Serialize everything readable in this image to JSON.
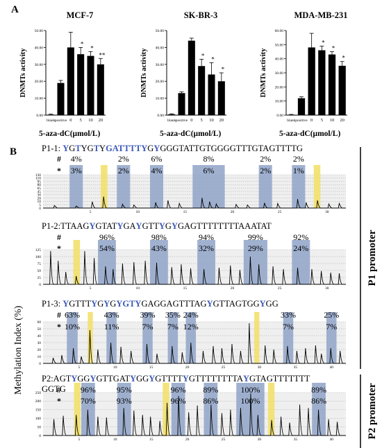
{
  "panels": {
    "a": "A",
    "b": "B"
  },
  "chart_data": [
    {
      "type": "bar",
      "title": "MCF-7",
      "ylabel": "DNMTs activity",
      "xlabel": "5-aza-dC(μmol/L)",
      "ylim": [
        0,
        50
      ],
      "yticks": [
        "0.00",
        "10.00",
        "20.00",
        "30.00",
        "40.00",
        "50.00"
      ],
      "categories": [
        "blank",
        "positive",
        "0",
        "5",
        "10",
        "20"
      ],
      "values": [
        0.3,
        19.0,
        40.0,
        36.0,
        35.0,
        30.0
      ],
      "errors": [
        0.3,
        1.5,
        9.0,
        4.0,
        2.5,
        3.5
      ],
      "significance": [
        "",
        "",
        "",
        "*",
        "*",
        "**"
      ],
      "colors": [
        "#000000",
        "#000000",
        "#000000",
        "#000000",
        "#000000",
        "#000000"
      ],
      "grid": false
    },
    {
      "type": "bar",
      "title": "SK-BR-3",
      "ylabel": "DNMTs activity",
      "xlabel": "5-aza-dC(μmol/L)",
      "ylim": [
        0,
        50
      ],
      "yticks": [
        "0.00",
        "10.00",
        "20.00",
        "30.00",
        "40.00",
        "50.00"
      ],
      "categories": [
        "blank",
        "positive",
        "0",
        "5",
        "10",
        "20"
      ],
      "values": [
        0.5,
        13.0,
        44.0,
        29.0,
        24.0,
        20.0
      ],
      "errors": [
        0.3,
        0.8,
        1.5,
        4.0,
        7.0,
        5.0
      ],
      "significance": [
        "",
        "",
        "",
        "*",
        "*",
        "*"
      ],
      "colors": [
        "#000000",
        "#000000",
        "#000000",
        "#000000",
        "#000000",
        "#000000"
      ],
      "grid": false
    },
    {
      "type": "bar",
      "title": "MDA-MB-231",
      "ylabel": "DNMTs activity",
      "xlabel": "5-aza-dC(μmol/L)",
      "ylim": [
        0,
        60
      ],
      "yticks": [
        "0.00",
        "10.00",
        "20.00",
        "30.00",
        "40.00",
        "50.00",
        "60.00"
      ],
      "categories": [
        "blank",
        "positive",
        "0",
        "5",
        "10",
        "20"
      ],
      "values": [
        0.3,
        12.0,
        48.0,
        46.0,
        43.0,
        35.0
      ],
      "errors": [
        0.2,
        1.0,
        10.0,
        3.0,
        2.0,
        3.0
      ],
      "significance": [
        "",
        "",
        "",
        "*",
        "*",
        "*"
      ],
      "colors": [
        "#000000",
        "#000000",
        "#000000",
        "#000000",
        "#000000",
        "#000000"
      ],
      "grid": false
    }
  ],
  "methylation": {
    "ylabel": "Methylation Index (%)",
    "hash": "#",
    "star": "*",
    "p1_label": "P1 promoter",
    "p2_label": "P2 promoter",
    "colors": {
      "cpg": "#8fa3c8",
      "control": "#f2e06b",
      "trace": "#000000"
    },
    "rows": [
      {
        "seq": [
          "P1-1: ",
          "Y",
          "G",
          "T",
          "Y",
          "G",
          "T",
          "Y",
          "GATTTTY",
          "G",
          "Y",
          "G",
          "GGTATTGTGGGGTTTGTAGTTTTG"
        ],
        "seq_blue": [
          1,
          3,
          6,
          8,
          10
        ],
        "ymax": 130,
        "yticks": [
          "0",
          "5",
          "10",
          "20",
          "30",
          "45",
          "65",
          "80",
          "95",
          "110",
          "130"
        ],
        "xticks": [
          "5",
          "10",
          "15",
          "20",
          "25",
          "30"
        ],
        "xmax": 32,
        "hash_values": [
          "4%",
          "2%",
          "6%",
          "8%",
          "2%",
          "2%"
        ],
        "star_values": [
          "3%",
          "2%",
          "4%",
          "6%",
          "2%",
          "1%"
        ],
        "cpg_regions": [
          [
            2.8,
            4.2
          ],
          [
            7.8,
            9.2
          ],
          [
            11.3,
            12.7
          ],
          [
            15.8,
            19.2
          ],
          [
            22.8,
            24.2
          ],
          [
            26.3,
            27.7
          ]
        ],
        "control_regions": [
          [
            6.1,
            6.8
          ],
          [
            28.6,
            29.3
          ]
        ],
        "peaks": [
          [
            1.2,
            10
          ],
          [
            3.5,
            8
          ],
          [
            5.2,
            25
          ],
          [
            6.4,
            45
          ],
          [
            8.4,
            15
          ],
          [
            9.6,
            12
          ],
          [
            11.9,
            22
          ],
          [
            13.2,
            30
          ],
          [
            14.4,
            18
          ],
          [
            16.8,
            40
          ],
          [
            17.6,
            25
          ],
          [
            18.3,
            16
          ],
          [
            20.4,
            14
          ],
          [
            21.6,
            12
          ],
          [
            23.4,
            20
          ],
          [
            24.8,
            18
          ],
          [
            26.9,
            35
          ],
          [
            27.8,
            22
          ],
          [
            29.0,
            30
          ],
          [
            30.2,
            16
          ],
          [
            31.3,
            18
          ]
        ]
      },
      {
        "seq": [
          "P1-2:TTAAG",
          "Y",
          "GTAT",
          "Y",
          "GA",
          "Y",
          "GTT",
          "Y",
          "G",
          "Y",
          "GAGTTTTTTTTAAATAT"
        ],
        "seq_blue": [
          1,
          3,
          5,
          7,
          9
        ],
        "ymax": 125,
        "yticks": [
          "0",
          "25",
          "50",
          "75",
          "100",
          "125"
        ],
        "xticks": [
          "5",
          "10",
          "15",
          "20",
          "25",
          "30"
        ],
        "xmax": 32,
        "hash_values": [
          "96%",
          "98%",
          "94%",
          "99%",
          "92%"
        ],
        "star_values": [
          "54%",
          "43%",
          "32%",
          "29%",
          "24%"
        ],
        "cpg_regions": [
          [
            5.8,
            7.7
          ],
          [
            11.3,
            13.2
          ],
          [
            16.3,
            18.2
          ],
          [
            21.2,
            23.7
          ],
          [
            26.3,
            28.2
          ]
        ],
        "control_regions": [
          [
            3.2,
            3.9
          ]
        ],
        "peaks": [
          [
            0.8,
            120
          ],
          [
            1.6,
            85
          ],
          [
            2.4,
            45
          ],
          [
            3.5,
            30
          ],
          [
            4.4,
            120
          ],
          [
            5.4,
            95
          ],
          [
            6.6,
            65
          ],
          [
            7.4,
            55
          ],
          [
            8.4,
            75
          ],
          [
            9.6,
            80
          ],
          [
            10.8,
            85
          ],
          [
            12.0,
            78
          ],
          [
            13.6,
            62
          ],
          [
            14.6,
            72
          ],
          [
            15.6,
            58
          ],
          [
            17.0,
            55
          ],
          [
            18.6,
            60
          ],
          [
            19.8,
            68
          ],
          [
            20.8,
            52
          ],
          [
            21.9,
            100
          ],
          [
            22.8,
            72
          ],
          [
            24.3,
            65
          ],
          [
            25.4,
            55
          ],
          [
            26.9,
            60
          ],
          [
            28.4,
            55
          ],
          [
            29.4,
            48
          ],
          [
            30.4,
            42
          ],
          [
            31.3,
            40
          ]
        ]
      },
      {
        "seq": [
          "P1-3: ",
          "Y",
          "GTTT",
          "Y",
          "G",
          "Y",
          "G",
          "Y",
          "GTY",
          "GAGGAGTTTAG",
          "Y",
          "GTTAGTGG",
          "Y",
          "GG"
        ],
        "seq_blue": [
          1,
          3,
          5,
          7,
          8,
          10,
          12
        ],
        "ymax": 60,
        "yticks": [
          "0",
          "10",
          "20",
          "30",
          "40",
          "50",
          "60"
        ],
        "xticks": [
          "5",
          "10",
          "15",
          "20",
          "25",
          "30",
          "35",
          "40"
        ],
        "xmax": 42,
        "hash_values": [
          "63%",
          "43%",
          "39%",
          "35%",
          "24%",
          "33%",
          "25%"
        ],
        "star_values": [
          "10%",
          "11%",
          "7%",
          "7%",
          "12%",
          "7%",
          "7%"
        ],
        "cpg_regions": [
          [
            3.3,
            4.8
          ],
          [
            8.8,
            10.2
          ],
          [
            13.8,
            15.2
          ],
          [
            17.3,
            18.7
          ],
          [
            19.8,
            21.2
          ],
          [
            33.3,
            34.7
          ],
          [
            39.3,
            40.7
          ]
        ],
        "control_regions": [
          [
            6.2,
            6.9
          ],
          [
            29.3,
            30.0
          ]
        ],
        "peaks": [
          [
            1.4,
            8
          ],
          [
            2.6,
            12
          ],
          [
            4.2,
            22
          ],
          [
            5.3,
            10
          ],
          [
            6.5,
            48
          ],
          [
            7.6,
            20
          ],
          [
            9.4,
            30
          ],
          [
            10.8,
            24
          ],
          [
            12.2,
            18
          ],
          [
            14.4,
            28
          ],
          [
            15.8,
            14
          ],
          [
            17.9,
            25
          ],
          [
            19.3,
            16
          ],
          [
            20.5,
            30
          ],
          [
            22.2,
            18
          ],
          [
            23.6,
            25
          ],
          [
            24.8,
            22
          ],
          [
            26.2,
            28
          ],
          [
            27.4,
            18
          ],
          [
            28.6,
            58
          ],
          [
            30.8,
            26
          ],
          [
            32.0,
            20
          ],
          [
            33.9,
            25
          ],
          [
            35.2,
            18
          ],
          [
            36.4,
            22
          ],
          [
            37.8,
            26
          ],
          [
            38.6,
            14
          ],
          [
            39.9,
            22
          ],
          [
            41.2,
            18
          ]
        ]
      },
      {
        "seq": [
          "P2:AGT",
          "Y",
          "GG",
          "Y",
          "GTTGAT",
          "Y",
          "GG",
          "Y",
          "GTTTT",
          "Y",
          "GTTTTTTTTA",
          "Y",
          "GTAGTTTTTTT"
        ],
        "seq_blue": [
          1,
          3,
          5,
          7,
          9,
          11
        ],
        "seq_line2": "GGTG",
        "ymax": 250,
        "yticks": [
          "0",
          "50",
          "100",
          "150",
          "200",
          "250"
        ],
        "xticks": [
          "5",
          "10",
          "15",
          "20",
          "25",
          "30",
          "35",
          "40"
        ],
        "xmax": 42,
        "hash_values": [
          "96%",
          "95%",
          "96%",
          "89%",
          "100%",
          "89%"
        ],
        "star_values": [
          "70%",
          "93%",
          "96%",
          "86%",
          "100%",
          "86%"
        ],
        "cpg_regions": [
          [
            5.3,
            7.2
          ],
          [
            10.3,
            12.2
          ],
          [
            17.8,
            19.7
          ],
          [
            22.3,
            24.2
          ],
          [
            26.8,
            30.7
          ],
          [
            37.3,
            39.2
          ]
        ],
        "control_regions": [
          [
            4.3,
            5.2
          ],
          [
            16.6,
            17.5
          ],
          [
            31.2,
            32.1
          ]
        ],
        "peaks": [
          [
            1.5,
            95
          ],
          [
            2.8,
            115
          ],
          [
            4.6,
            120
          ],
          [
            6.2,
            150
          ],
          [
            7.6,
            110
          ],
          [
            8.8,
            105
          ],
          [
            11.2,
            160
          ],
          [
            12.6,
            145
          ],
          [
            13.8,
            120
          ],
          [
            14.9,
            110
          ],
          [
            16.2,
            85
          ],
          [
            17.2,
            190
          ],
          [
            18.8,
            230
          ],
          [
            20.2,
            135
          ],
          [
            21.4,
            175
          ],
          [
            23.3,
            180
          ],
          [
            24.8,
            130
          ],
          [
            26.0,
            150
          ],
          [
            27.4,
            160
          ],
          [
            28.8,
            245
          ],
          [
            29.8,
            120
          ],
          [
            31.7,
            90
          ],
          [
            33.0,
            110
          ],
          [
            34.2,
            75
          ],
          [
            35.6,
            180
          ],
          [
            36.8,
            160
          ],
          [
            38.2,
            150
          ],
          [
            39.6,
            95
          ],
          [
            40.8,
            80
          ]
        ]
      }
    ]
  }
}
